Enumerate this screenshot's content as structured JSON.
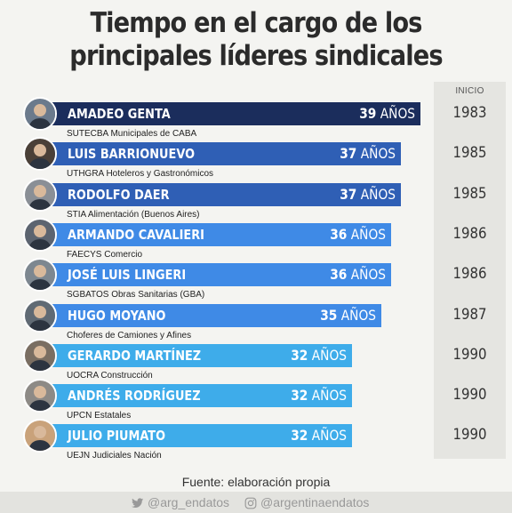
{
  "title_line1": "Tiempo en el cargo de los",
  "title_line2": "principales líderes sindicales",
  "inicio_header": "INICIO",
  "unit": "AÑOS",
  "source": "Fuente: elaboración propia",
  "social": {
    "twitter": "@arg_endatos",
    "instagram": "@argentinaendatos"
  },
  "colors": {
    "dark": "#1b2d5c",
    "mid": "#2f5fb5",
    "blue": "#3f8ae6",
    "sky": "#3eacea"
  },
  "chart_data": {
    "type": "bar",
    "orientation": "horizontal",
    "title": "Tiempo en el cargo de los principales líderes sindicales",
    "categories": [
      "AMADEO GENTA",
      "LUIS BARRIONUEVO",
      "RODOLFO DAER",
      "ARMANDO CAVALIERI",
      "JOSÉ LUIS LINGERI",
      "HUGO MOYANO",
      "GERARDO MARTÍNEZ",
      "ANDRÉS RODRÍGUEZ",
      "JULIO PIUMATO"
    ],
    "values": [
      39,
      37,
      37,
      36,
      36,
      35,
      32,
      32,
      32
    ],
    "unions": [
      "SUTECBA Municipales de CABA",
      "UTHGRA Hoteleros y Gastronómicos",
      "STIA Alimentación (Buenos Aires)",
      "FAECYS Comercio",
      "SGBATOS Obras Sanitarias (GBA)",
      "Choferes de Camiones y Afines",
      "UOCRA Construcción",
      "UPCN Estatales",
      "UEJN Judiciales Nación"
    ],
    "inicio": [
      "1983",
      "1985",
      "1985",
      "1986",
      "1986",
      "1987",
      "1990",
      "1990",
      "1990"
    ],
    "bar_colors": [
      "#1b2d5c",
      "#2f5fb5",
      "#2f5fb5",
      "#3f8ae6",
      "#3f8ae6",
      "#3f8ae6",
      "#3eacea",
      "#3eacea",
      "#3eacea"
    ]
  }
}
